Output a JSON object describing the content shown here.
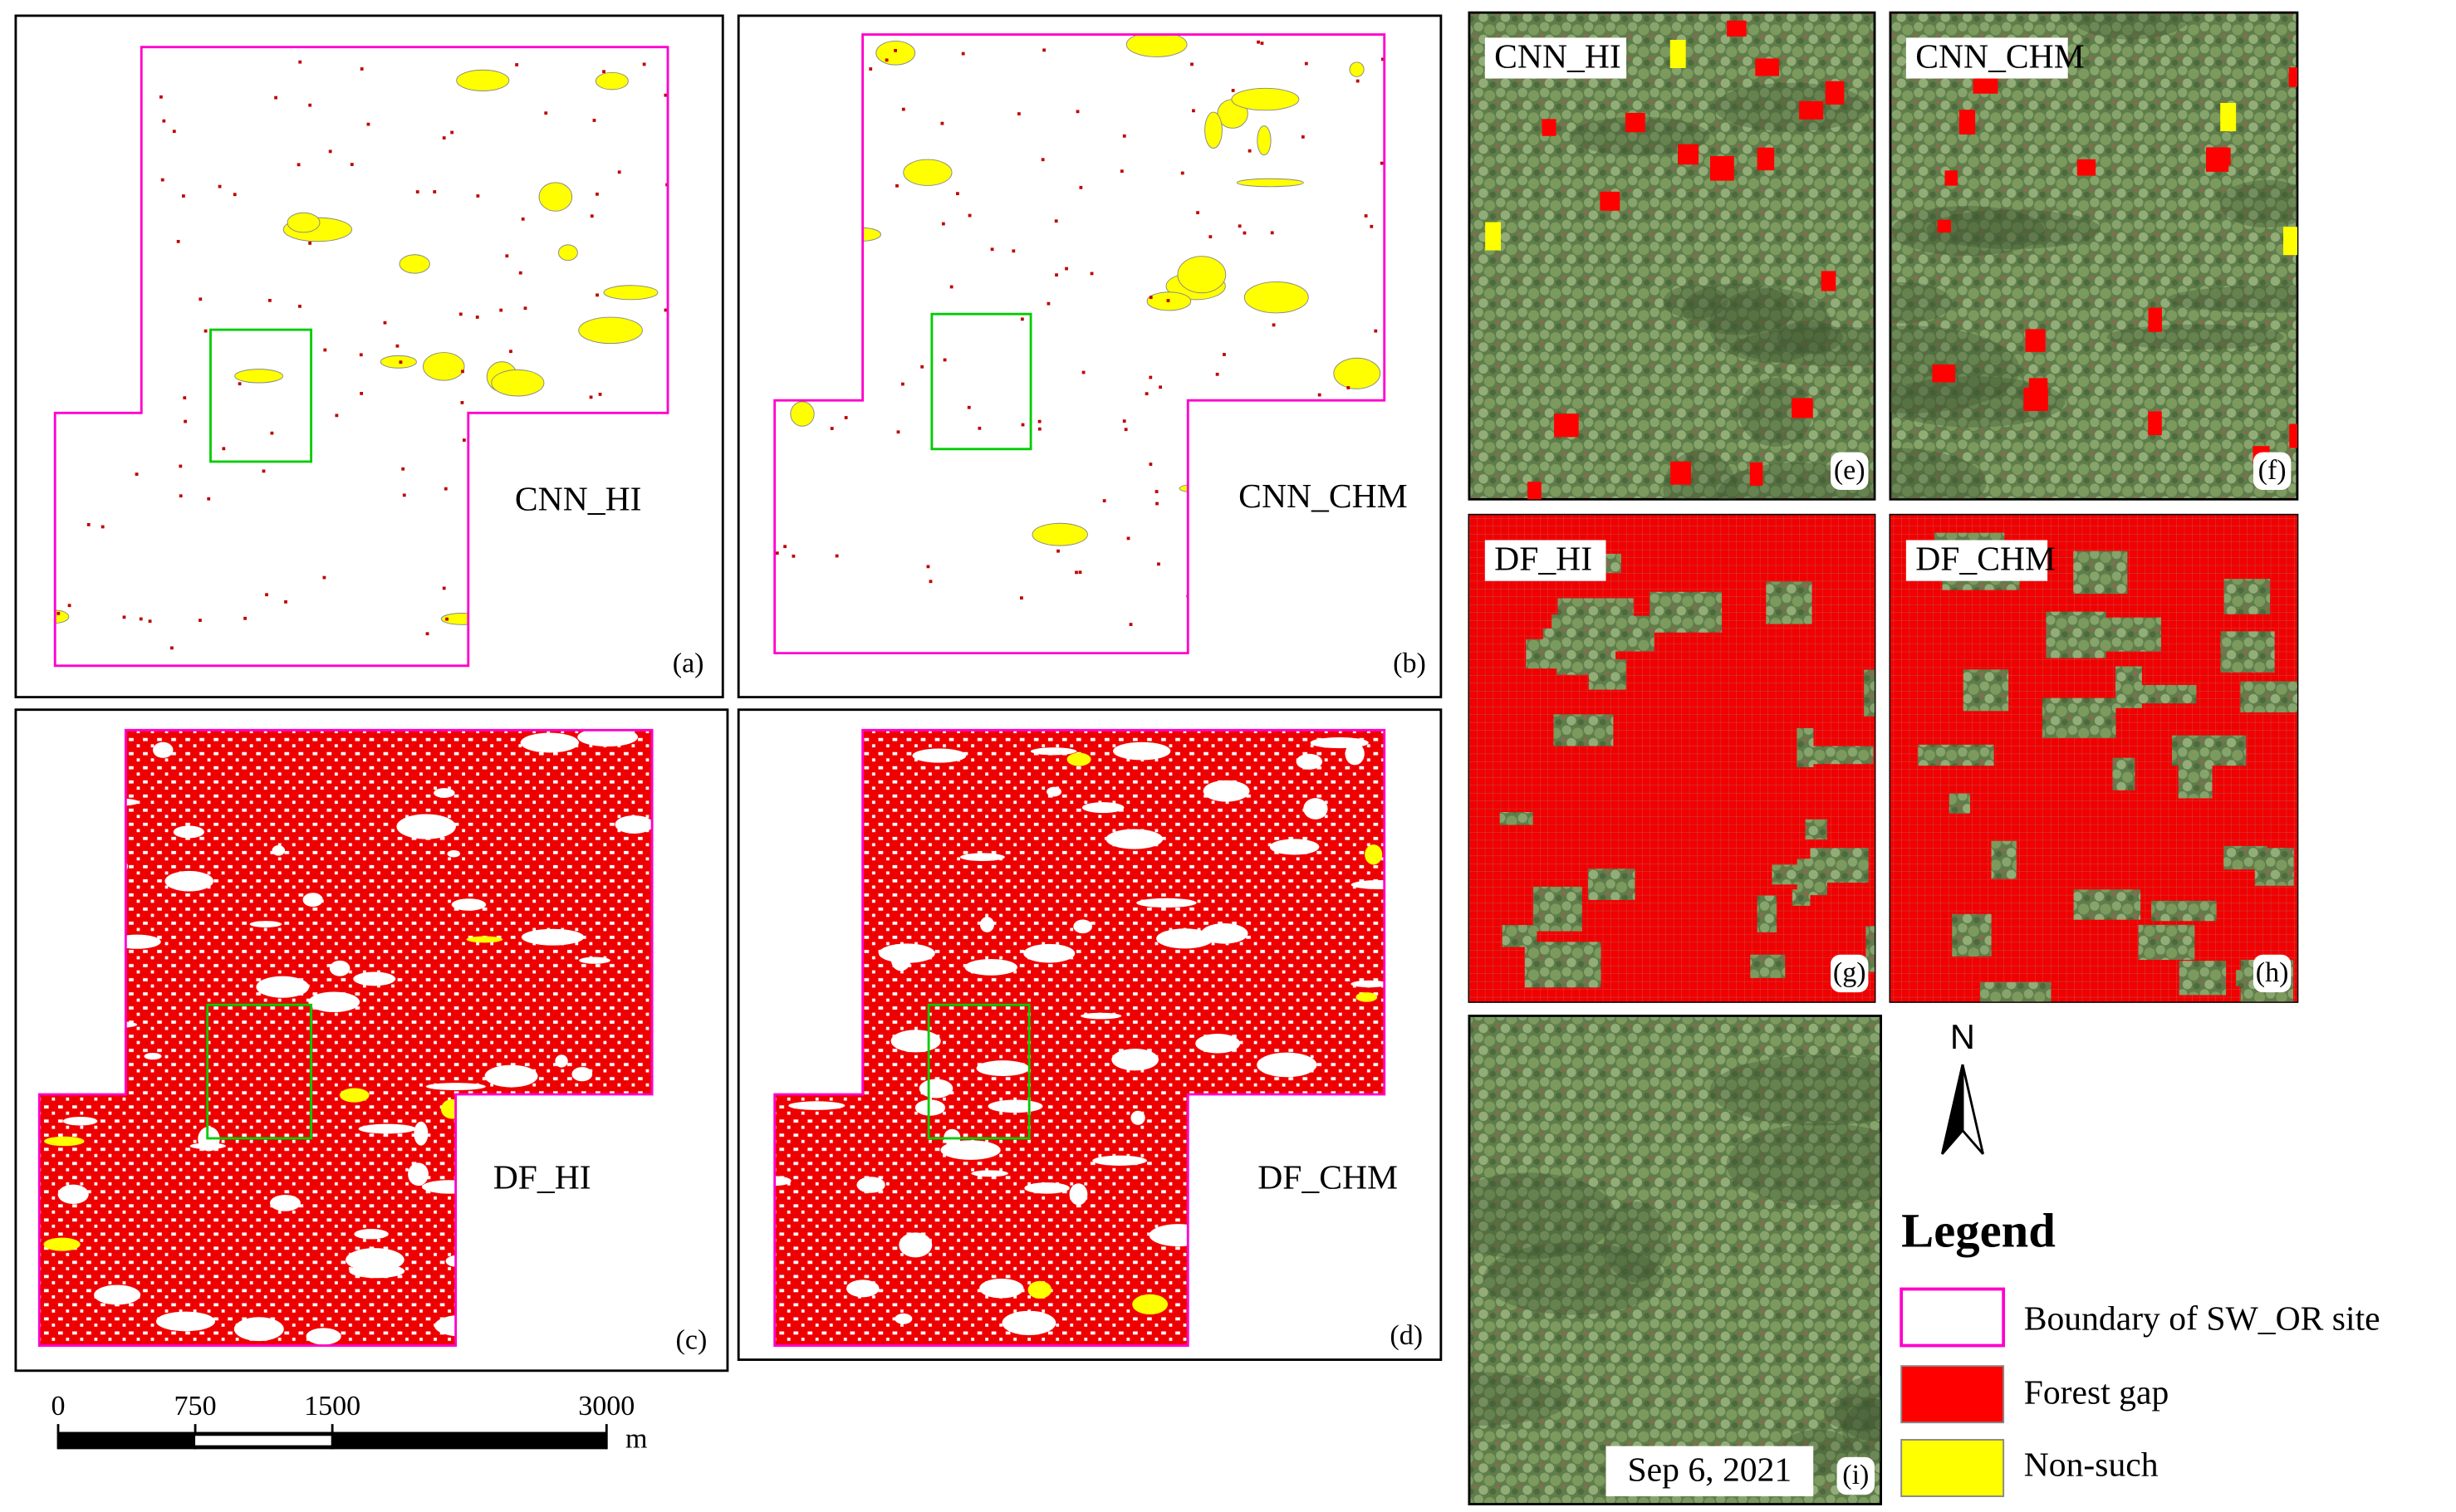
{
  "panels": [
    {
      "label": "(a)",
      "name": "CNN_HI"
    },
    {
      "label": "(b)",
      "name": "CNN_CHM"
    },
    {
      "label": "(c)",
      "name": "DF_HI"
    },
    {
      "label": "(d)",
      "name": "DF_CHM"
    },
    {
      "label": "(e)",
      "name": "CNN_HI"
    },
    {
      "label": "(f)",
      "name": "CNN_CHM"
    },
    {
      "label": "(g)",
      "name": "DF_HI"
    },
    {
      "label": "(h)",
      "name": "DF_CHM"
    },
    {
      "label": "(i)",
      "date": "Sep 6, 2021"
    }
  ],
  "scale_bar": {
    "ticks": [
      0,
      750,
      1500,
      3000
    ],
    "unit": "m"
  },
  "north": "N",
  "legend": {
    "title": "Legend",
    "items": [
      "Boundary of SW_OR site",
      "Forest gap",
      "Non-such"
    ]
  }
}
